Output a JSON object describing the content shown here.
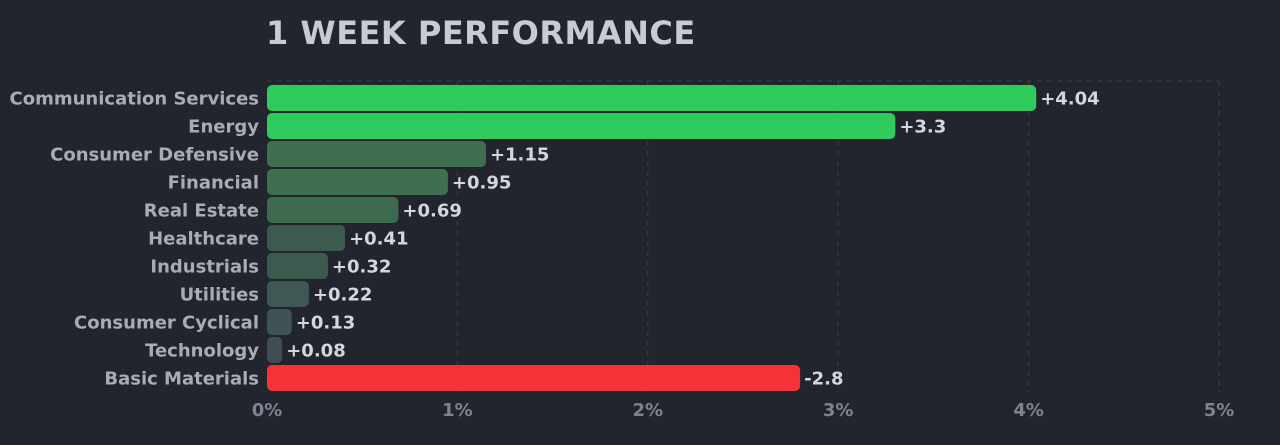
{
  "chart_data": {
    "type": "bar",
    "orientation": "horizontal",
    "title": "1 WEEK PERFORMANCE",
    "xlabel": "",
    "ylabel": "",
    "xlim": [
      0,
      5
    ],
    "x_tick_values": [
      0,
      1,
      2,
      3,
      4,
      5
    ],
    "x_tick_labels": [
      "0%",
      "1%",
      "2%",
      "3%",
      "4%",
      "5%"
    ],
    "grid": true,
    "categories": [
      "Communication Services",
      "Energy",
      "Consumer Defensive",
      "Financial",
      "Real Estate",
      "Healthcare",
      "Industrials",
      "Utilities",
      "Consumer Cyclical",
      "Technology",
      "Basic Materials"
    ],
    "values": [
      4.04,
      3.3,
      1.15,
      0.95,
      0.69,
      0.41,
      0.32,
      0.22,
      0.13,
      0.08,
      -2.8
    ],
    "value_labels": [
      "+4.04",
      "+3.3",
      "+1.15",
      "+0.95",
      "+0.69",
      "+0.41",
      "+0.32",
      "+0.22",
      "+0.13",
      "+0.08",
      "-2.8"
    ],
    "bar_colors": [
      "#2fcb5c",
      "#2fcb5c",
      "#3e7050",
      "#3e7050",
      "#3d6a4e",
      "#3d5a4f",
      "#3d5a4f",
      "#3f5854",
      "#3f5254",
      "#3f4e55",
      "#f53238"
    ],
    "colors": {
      "background": "#22252d",
      "positive": "#2fcb5c",
      "negative": "#f53238",
      "grid": "#3b3f4a"
    }
  }
}
